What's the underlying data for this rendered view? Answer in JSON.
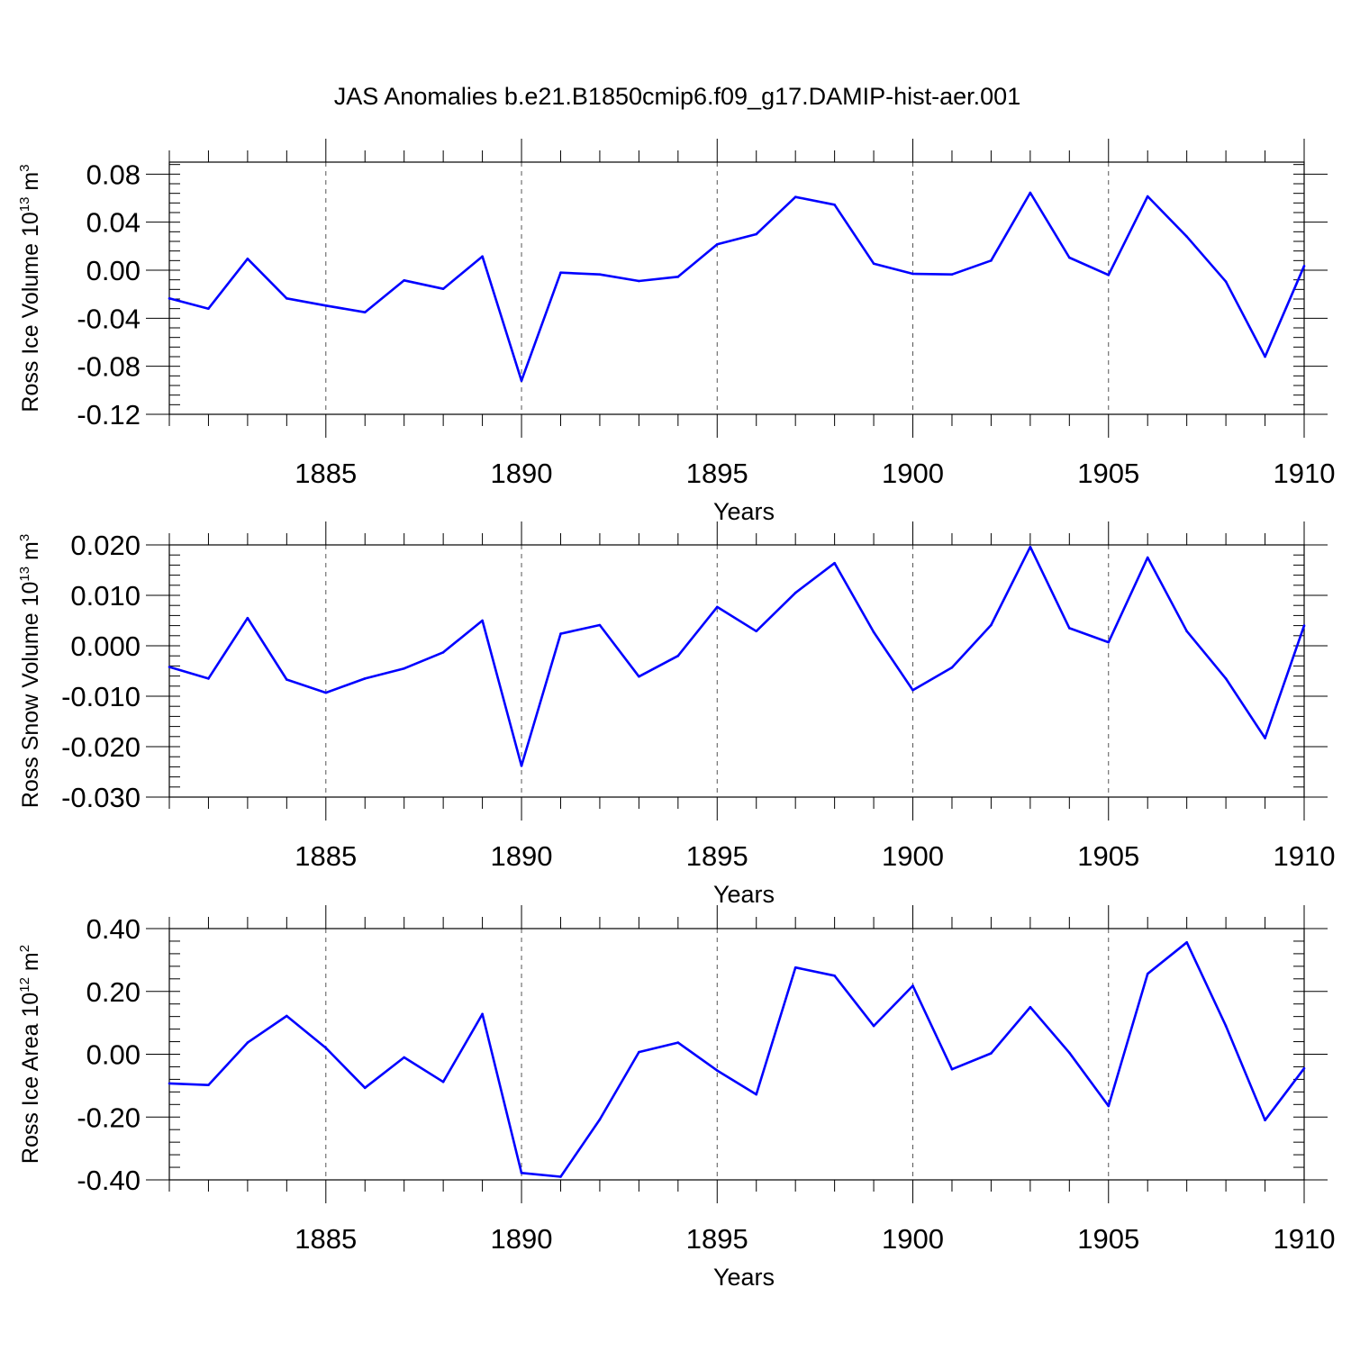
{
  "title": "JAS Anomalies b.e21.B1850cmip6.f09_g17.DAMIP-hist-aer.001",
  "colors": {
    "series": "#0000ff",
    "axes": "#000000",
    "grid": "#555555"
  },
  "chart_data": [
    {
      "type": "line",
      "ylabel_main": "Ross Ice Volume 10",
      "ylabel_sup1": "13",
      "ylabel_mid": " m",
      "ylabel_sup2": "3",
      "xlabel": "Years",
      "xlim": [
        1881,
        1910
      ],
      "ylim": [
        -0.12,
        0.09
      ],
      "xticks": [
        1885,
        1890,
        1895,
        1900,
        1905,
        1910
      ],
      "yticks": [
        -0.12,
        -0.08,
        -0.04,
        0.0,
        0.04,
        0.08
      ],
      "yticklabels": [
        "-0.12",
        "-0.08",
        "-0.04",
        "0.00",
        "0.04",
        "0.08"
      ],
      "yminor_step": 0.008,
      "grid": "vertical dashed at major x ticks",
      "x": [
        1881,
        1882,
        1883,
        1884,
        1885,
        1886,
        1887,
        1888,
        1889,
        1890,
        1891,
        1892,
        1893,
        1894,
        1895,
        1896,
        1897,
        1898,
        1899,
        1900,
        1901,
        1902,
        1903,
        1904,
        1905,
        1906,
        1907,
        1908,
        1909,
        1910
      ],
      "y": [
        -0.0235,
        -0.032,
        0.0095,
        -0.0235,
        -0.0295,
        -0.035,
        -0.0085,
        -0.0155,
        0.0115,
        -0.092,
        -0.002,
        -0.0035,
        -0.009,
        -0.0055,
        0.0215,
        0.03,
        0.061,
        0.0545,
        0.0055,
        -0.003,
        -0.0035,
        0.008,
        0.0645,
        0.0105,
        -0.004,
        0.0615,
        0.028,
        -0.0095,
        -0.072,
        0.0035
      ]
    },
    {
      "type": "line",
      "ylabel_main": "Ross Snow Volume 10",
      "ylabel_sup1": "13",
      "ylabel_mid": " m",
      "ylabel_sup2": "3",
      "xlabel": "Years",
      "xlim": [
        1881,
        1910
      ],
      "ylim": [
        -0.03,
        0.02
      ],
      "xticks": [
        1885,
        1890,
        1895,
        1900,
        1905,
        1910
      ],
      "yticks": [
        -0.03,
        -0.02,
        -0.01,
        0.0,
        0.01,
        0.02
      ],
      "yticklabels": [
        "-0.030",
        "-0.020",
        "-0.010",
        "0.000",
        "0.010",
        "0.020"
      ],
      "yminor_step": 0.002,
      "grid": "vertical dashed at major x ticks",
      "x": [
        1881,
        1882,
        1883,
        1884,
        1885,
        1886,
        1887,
        1888,
        1889,
        1890,
        1891,
        1892,
        1893,
        1894,
        1895,
        1896,
        1897,
        1898,
        1899,
        1900,
        1901,
        1902,
        1903,
        1904,
        1905,
        1906,
        1907,
        1908,
        1909,
        1910
      ],
      "y": [
        -0.0042,
        -0.0065,
        0.0055,
        -0.0067,
        -0.0093,
        -0.0065,
        -0.0045,
        -0.0013,
        0.005,
        -0.0238,
        0.0024,
        0.0041,
        -0.0061,
        -0.002,
        0.0077,
        0.0029,
        0.0105,
        0.0164,
        0.0027,
        -0.0088,
        -0.0043,
        0.0041,
        0.0196,
        0.0035,
        0.0007,
        0.0175,
        0.0029,
        -0.0065,
        -0.0183,
        0.004
      ]
    },
    {
      "type": "line",
      "ylabel_main": "Ross Ice Area 10",
      "ylabel_sup1": "12",
      "ylabel_mid": " m",
      "ylabel_sup2": "2",
      "xlabel": "Years",
      "xlim": [
        1881,
        1910
      ],
      "ylim": [
        -0.4,
        0.4
      ],
      "xticks": [
        1885,
        1890,
        1895,
        1900,
        1905,
        1910
      ],
      "yticks": [
        -0.4,
        -0.2,
        0.0,
        0.2,
        0.4
      ],
      "yticklabels": [
        "-0.40",
        "-0.20",
        "0.00",
        "0.20",
        "0.40"
      ],
      "yminor_step": 0.04,
      "grid": "vertical dashed at major x ticks",
      "x": [
        1881,
        1882,
        1883,
        1884,
        1885,
        1886,
        1887,
        1888,
        1889,
        1890,
        1891,
        1892,
        1893,
        1894,
        1895,
        1896,
        1897,
        1898,
        1899,
        1900,
        1901,
        1902,
        1903,
        1904,
        1905,
        1906,
        1907,
        1908,
        1909,
        1910
      ],
      "y": [
        -0.093,
        -0.098,
        0.037,
        0.122,
        0.02,
        -0.107,
        -0.01,
        -0.088,
        0.128,
        -0.378,
        -0.39,
        -0.208,
        0.007,
        0.037,
        -0.052,
        -0.128,
        0.276,
        0.25,
        0.09,
        0.218,
        -0.048,
        0.003,
        0.15,
        0.005,
        -0.165,
        0.256,
        0.356,
        0.09,
        -0.21,
        -0.045
      ]
    }
  ]
}
